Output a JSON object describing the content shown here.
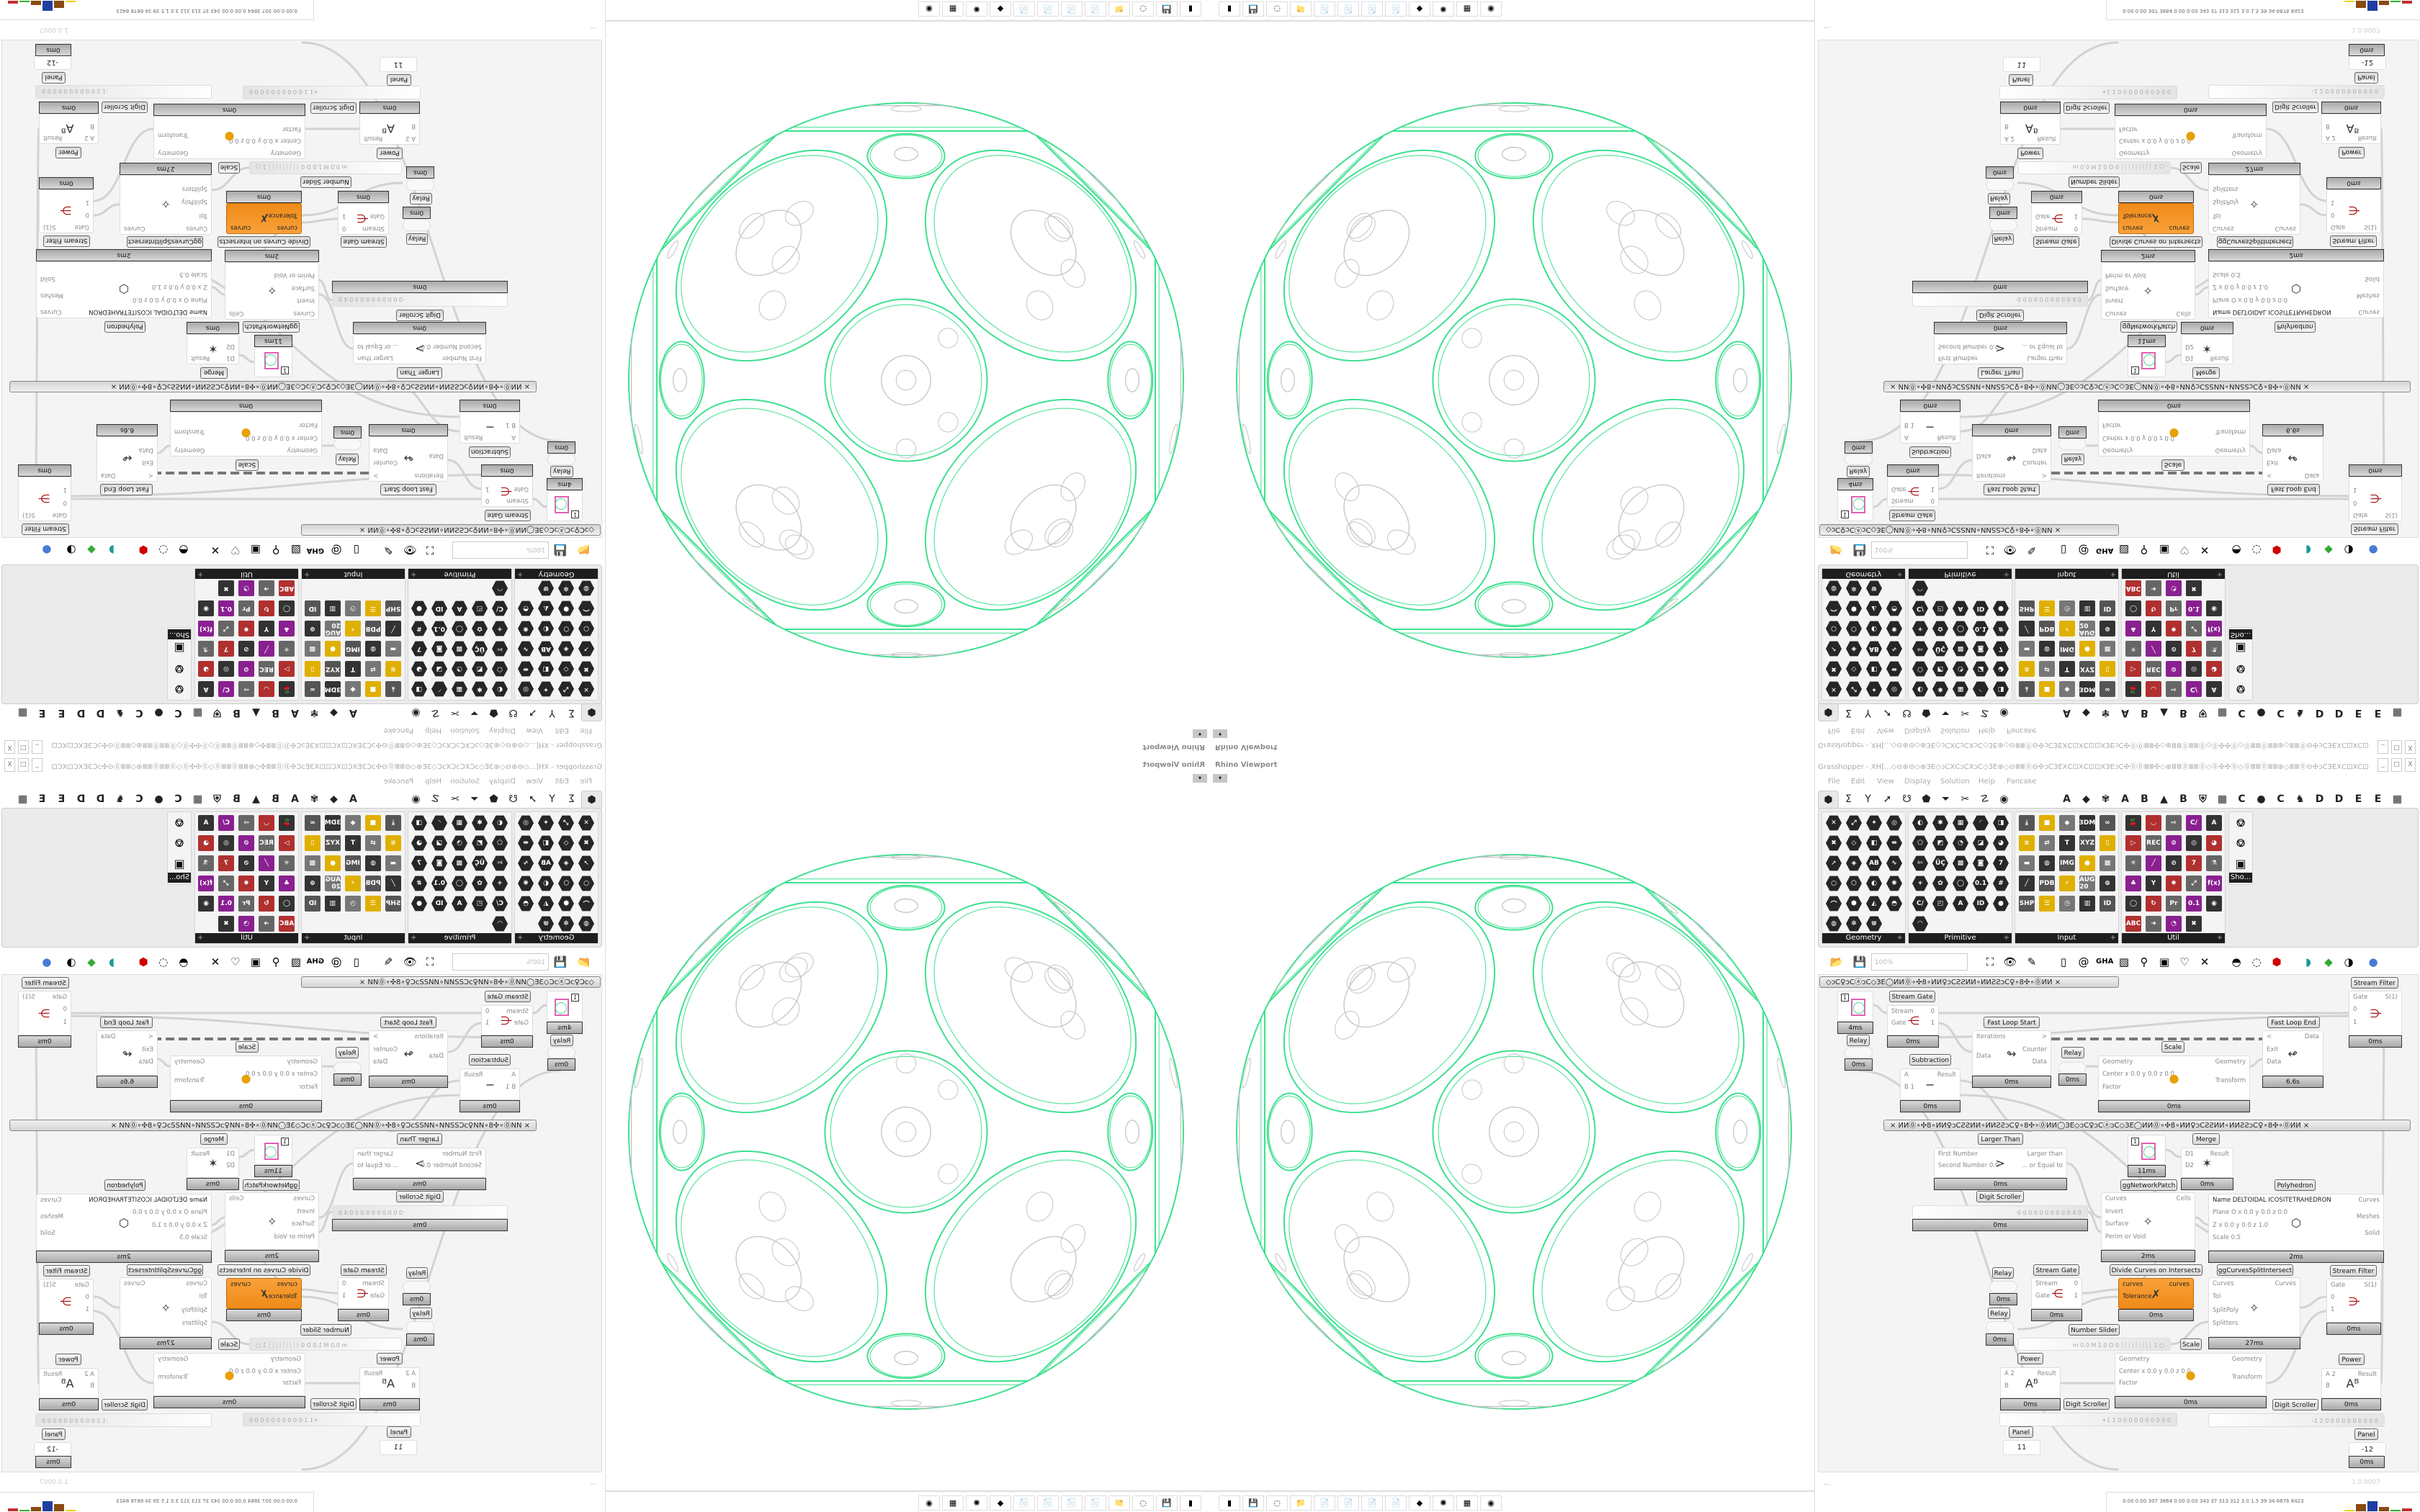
{
  "viewport": {
    "title": "Rhino Viewport",
    "dropdown_icon": "▾",
    "taskbar_icons": [
      "battery-icon",
      "floppy-64-icon",
      "blank-icon",
      "folder-icon",
      "notepad-icon",
      "notepad-icon",
      "notepad-icon",
      "notepad-icon",
      "inkscape-icon",
      "virus-icon",
      "calculator-icon",
      "firefox-icon"
    ],
    "taskbar_glyphs": [
      "▮",
      "💾",
      "◌",
      "📁",
      "📄",
      "📄",
      "📄",
      "📄",
      "◆",
      "✺",
      "▦",
      "◉"
    ],
    "colors": {
      "network": "#3ee08f",
      "cells": "#c4c4c4"
    }
  },
  "grasshopper": {
    "title": "Grasshopper - XH[...◇⊖⊕⊖◇⊕ЗЕ◇ↄCⅩⅭↄCⅩↄC◇ЗЕ⊕◇⊖ⅢⅢ⓪⊖✣ↄCЗЕⅩⅭ⊡ⅩⅭ⊡⊡ⅩЗЕↄC✣⓪⓪ⅢⅢ✣◇⊕ⅢⅢ⓪ⅢⅢ⓪◇⓪✣✣⓪◇⓪ⅢⅢ⓪ⅢⅢ⊕◇ⅢⅢ⓪⊖✣ↄCЗЕⅩⅭ⊡ⅩⅭ⊡",
    "window_buttons": [
      "_",
      "□",
      "X"
    ],
    "menu": [
      "File",
      "Edit",
      "View",
      "Display",
      "Solution",
      "Help",
      "Pancake"
    ],
    "tab_icons": [
      "⬢",
      "Σ",
      "Y",
      "➚",
      "☋",
      "⬟",
      "⏷",
      "✂",
      "☡",
      "◉"
    ],
    "tab_letters": [
      "A",
      "◆",
      "✾",
      "A",
      "B",
      "▲",
      "B",
      "⛨",
      "▦",
      "C",
      "●",
      "C",
      "♞",
      "D",
      "D",
      "E",
      "E",
      "▦"
    ],
    "panels": [
      {
        "name": "Geometry",
        "icons": [
          "✕",
          "⤢",
          "✦",
          "◎",
          "✖",
          "◇",
          "◧",
          "⇹",
          "➚",
          "◈",
          "AB",
          "∿",
          "○",
          "⬡",
          "◐",
          "✺",
          "⌒",
          "⬢",
          "◭",
          "◓",
          "◍",
          "✻",
          "⋓"
        ]
      },
      {
        "name": "Primitive",
        "icons": [
          "◐",
          "✱",
          "▦",
          "◜",
          "◨",
          "⬠",
          "◩",
          "◔",
          "◪",
          "◕",
          "✄",
          "ÜÇ",
          "▩",
          "◙",
          "7",
          "+",
          "✿",
          "◯",
          "0.1",
          "#",
          "C/",
          "◰",
          "A",
          "ID",
          "●",
          "◠"
        ]
      },
      {
        "name": "Input",
        "icons": [
          "⤓",
          "■",
          "◆",
          "3DM",
          "∞",
          "≋",
          "⇄",
          "T",
          "XYZ",
          "▯",
          "▬",
          "◍",
          "IMG",
          "●",
          "▩",
          "╱",
          "PDB",
          "⚡",
          "AUG 20",
          "⊚",
          "SHP",
          "☰",
          "◷",
          "▥",
          "ID"
        ]
      },
      {
        "name": "Util",
        "icons": [
          "🍒",
          "◡",
          "⇨",
          "C/",
          "A",
          "▷",
          "REC",
          "⊘",
          "◎",
          "◕",
          "✳",
          "╱",
          "⊘",
          "7",
          "⚗",
          "♣",
          "Y",
          "✹",
          "⤢",
          "f(x)",
          "◯",
          "↻",
          "Pr",
          "0.1",
          "◉",
          "ABC",
          "➜",
          "◔",
          "✖"
        ]
      },
      {
        "name": "Sho...",
        "icons": [
          "⎊",
          "⎊",
          "▣"
        ]
      }
    ],
    "toolbar": {
      "zoom_value": "100%",
      "icons": [
        "open-file-icon",
        "save-icon",
        "zoom-extents-icon",
        "preview-eye-icon",
        "sketch-pen-icon",
        "bake-icon",
        "email-icon",
        "gha-icon",
        "picture-icon",
        "search-icon",
        "mystery-box-icon",
        "lightbulb-icon",
        "wire-cross-icon",
        "bulb-dark-icon",
        "gear-ring-icon",
        "red-shape-icon",
        "teal-shape-icon",
        "green-shape-icon",
        "ball-icon",
        "sphere-icon"
      ],
      "glyphs": [
        "📂",
        "💾",
        "⛶",
        "👁",
        "✎",
        "▯",
        "@",
        "GHA",
        "▧",
        "⚲",
        "▣",
        "♡",
        "✕",
        "◓",
        "◌",
        "⬢",
        "◗",
        "◆",
        "◑",
        "●"
      ]
    },
    "groups": [
      "◇ↄC♀ↄCⓐↄC◇ЗЕ◯ИИ⓪∘✣8∘ИИ♀ↄCƧƧИИ∘ИИƧƧↄC♀∘8✣∘⓪ИИ        ×",
      "×        ИИ⓪∘✣8∘ИИ♀ↄCƧƧИИ∘ИИƧƧↄC♀∘8✣∘⓪ИИ◯ЗЕ◇ↄC♀ↄCⓐↄC◇ЗЕ◯ИИ⓪∘✣8∘ИИ♀ↄCƧƧИИ∘ИИƧƧↄC♀∘8✣∘⓪ИИ        ×"
    ],
    "components": [
      {
        "label": "",
        "kind": "param",
        "value": "1",
        "time": "4ms"
      },
      {
        "label": "Relay",
        "kind": "relay",
        "time": "0ms"
      },
      {
        "label": "Stream Gate",
        "inputs": [
          "Stream",
          "Gate"
        ],
        "outputs": [
          "0",
          "1"
        ],
        "icon": "⋲",
        "time": "0ms"
      },
      {
        "label": "Fast Loop Start",
        "inputs": [
          "Iterations",
          "Data"
        ],
        "outputs": [
          ">",
          "Counter",
          "Data"
        ],
        "icon": "↬",
        "time": "0ms"
      },
      {
        "label": "Relay",
        "kind": "relay",
        "time": "0ms"
      },
      {
        "label": "Scale",
        "inputs": [
          "Geometry",
          "Center  x 0.0  y 0.0  z 0.0",
          "Factor"
        ],
        "outputs": [
          "Geometry",
          "Transform"
        ],
        "icon": "●",
        "time": "0ms"
      },
      {
        "label": "Fast Loop End",
        "inputs": [
          "<",
          "Exit",
          "Data"
        ],
        "outputs": [
          "Data"
        ],
        "icon": "↫",
        "time": "6.6s"
      },
      {
        "label": "Stream Filter",
        "inputs": [
          "Gate",
          "0",
          "1"
        ],
        "outputs": [
          "S(1)"
        ],
        "icon": "⋺",
        "time": "0ms"
      },
      {
        "label": "Subtraction",
        "inputs": [
          "A",
          "B 1"
        ],
        "outputs": [
          "Result"
        ],
        "icon": "−",
        "time": "0ms"
      },
      {
        "label": "Larger Than",
        "inputs": [
          "First Number",
          "Second Number 0.0"
        ],
        "outputs": [
          "Larger than",
          "... or Equal to"
        ],
        "icon": ">",
        "time": "0ms"
      },
      {
        "label": "Digit Scroller",
        "kind": "slider",
        "value": "·0 0 0 0 0 0 0 0 0 0 4 0",
        "time": "0ms"
      },
      {
        "label": "",
        "kind": "param",
        "value": "1",
        "time": "11ms"
      },
      {
        "label": "Merge",
        "inputs": [
          "D1",
          "D2"
        ],
        "outputs": [
          "Result"
        ],
        "icon": "✶",
        "time": "0ms"
      },
      {
        "label": "ggNetworkPatch",
        "inputs": [
          "Curves",
          "Invert",
          "Surface",
          "Perim or Void"
        ],
        "outputs": [
          "Cells"
        ],
        "icon": "✧",
        "time": "2ms"
      },
      {
        "label": "Polyhedron",
        "inputs": [
          "Name DELTOIDAL ICOSITETRAHEDRON",
          "Plane  O x 0.0 y 0.0 z 0.0",
          "  Z x 0.0 y 0.0 z 1.0",
          "Scale 0.5"
        ],
        "outputs": [
          "Curves",
          "Meshes",
          "Solid"
        ],
        "icon": "⬡",
        "time": "2ms"
      },
      {
        "label": "Relay",
        "kind": "relay",
        "time": "0ms"
      },
      {
        "label": "Stream Gate",
        "inputs": [
          "Stream",
          "Gate"
        ],
        "outputs": [
          "0",
          "1"
        ],
        "icon": "⋲",
        "time": "0ms"
      },
      {
        "label": "Divide Curves on Intersects",
        "kind": "orange",
        "inputs": [
          "curves",
          "Tolerance"
        ],
        "outputs": [
          "curves"
        ],
        "icon": "✗",
        "time": "0ms"
      },
      {
        "label": "ggCurvesSplitIntersect",
        "inputs": [
          "Curves",
          "Tol",
          "SplitPoly",
          "Splitters"
        ],
        "outputs": [
          "Curves"
        ],
        "icon": "✧",
        "time": "27ms"
      },
      {
        "label": "Stream Filter",
        "inputs": [
          "Gate",
          "0",
          "1"
        ],
        "outputs": [
          "S(1)"
        ],
        "icon": "⋺",
        "time": "0ms"
      },
      {
        "label": "Relay",
        "kind": "relay",
        "time": "0ms"
      },
      {
        "label": "Number Slider",
        "kind": "slider",
        "value": "m 0.0  M 1.0  D 0   ┊┊┊┊┊┊┊┊┊ 1 ○"
      },
      {
        "label": "Scale",
        "inputs": [
          "Geometry",
          "Center  x 0.0  y 0.0  z 0.0",
          "Factor"
        ],
        "outputs": [
          "Geometry",
          "Transform"
        ],
        "icon": "●",
        "time": "0ms"
      },
      {
        "label": "Power",
        "inputs": [
          "A 2",
          "B"
        ],
        "outputs": [
          "Result"
        ],
        "icon": "Aᴮ",
        "time": "0ms"
      },
      {
        "label": "Power",
        "inputs": [
          "A 2",
          "B"
        ],
        "outputs": [
          "Result"
        ],
        "icon": "Aᴮ",
        "time": "0ms"
      },
      {
        "label": "Digit Scroller",
        "kind": "slider",
        "value": "+1 1  0 0 0 0 0 0 0 0 0 0"
      },
      {
        "label": "Digit Scroller",
        "kind": "slider",
        "value": "-1 2  0 0 0 0 0 0 0 0 0 0"
      },
      {
        "label": "Panel",
        "kind": "panel",
        "value": "11"
      },
      {
        "label": "Panel",
        "kind": "panel",
        "value": "-12",
        "time": "0ms"
      }
    ],
    "status_left": "...",
    "status_version": "1.0.0007",
    "tray_text": "0.00 0.00 307 3864 0.00 0.00 343 37 313 312 3.0 1.5 39 34 6676 8423",
    "tray_bar_colors": [
      "#e8d000",
      "#8a4a10",
      "#1f3fa0",
      "#8a4a10",
      "#30b030",
      "#c03030"
    ],
    "accent_orange": "#f39a2c"
  }
}
